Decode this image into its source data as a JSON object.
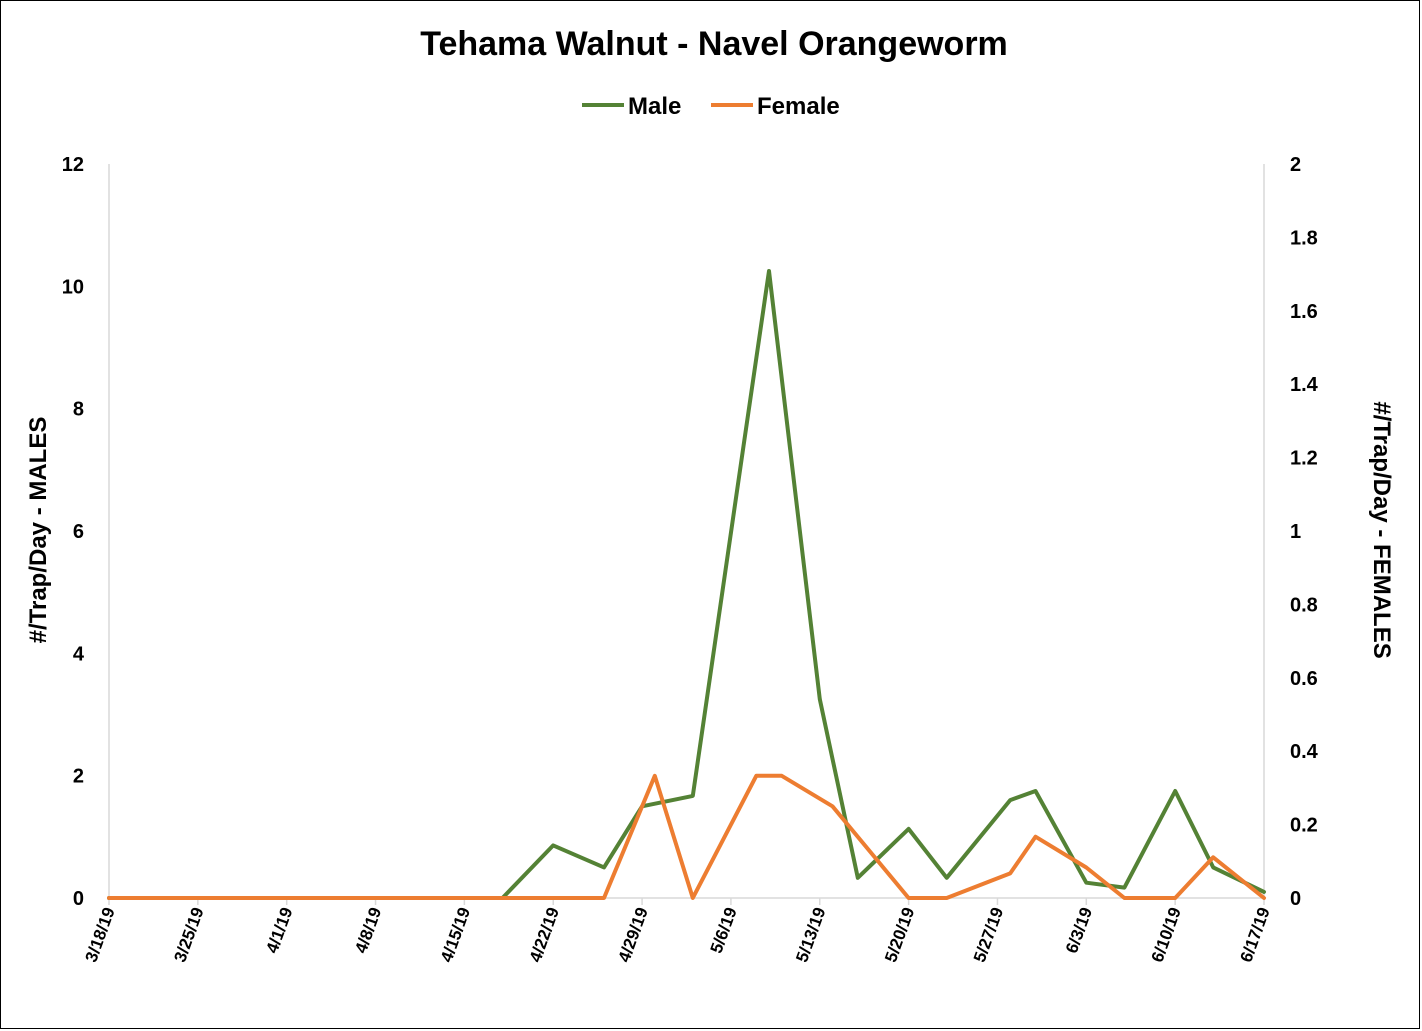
{
  "chart_data": {
    "type": "line",
    "title": "Tehama Walnut - Navel Orangeworm",
    "x": [
      "3/18/19",
      "3/25/19",
      "4/1/19",
      "4/8/19",
      "4/15/19",
      "4/22/19",
      "4/29/19",
      "5/6/19",
      "5/13/19",
      "5/20/19",
      "5/27/19",
      "6/3/19",
      "6/10/19",
      "6/17/19"
    ],
    "x_dates": [
      "2019-03-18",
      "2019-03-25",
      "2019-04-01",
      "2019-04-08",
      "2019-04-15",
      "2019-04-22",
      "2019-04-29",
      "2019-05-06",
      "2019-05-13",
      "2019-05-20",
      "2019-05-27",
      "2019-06-03",
      "2019-06-10",
      "2019-06-17"
    ],
    "ylabel_left": "#/Trap/Day  - MALES",
    "ylabel_right": "#/Trap/Day - FEMALES",
    "ylim_left": [
      0,
      12
    ],
    "ylim_right": [
      0,
      2
    ],
    "yticks_left": [
      "0",
      "2",
      "4",
      "6",
      "8",
      "10",
      "12"
    ],
    "yticks_right": [
      "0",
      "0.2",
      "0.4",
      "0.6",
      "0.8",
      "1",
      "1.2",
      "1.4",
      "1.6",
      "1.8",
      "2"
    ],
    "legend": {
      "placement": "top-center",
      "entries": [
        "Male",
        "Female"
      ]
    },
    "grid": false,
    "series": [
      {
        "name": "Male",
        "axis": "left",
        "color": "#548235",
        "points": [
          [
            "2019-03-18",
            0
          ],
          [
            "2019-04-15",
            0
          ],
          [
            "2019-04-18",
            0
          ],
          [
            "2019-04-22",
            0.86
          ],
          [
            "2019-04-26",
            0.5
          ],
          [
            "2019-04-29",
            1.5
          ],
          [
            "2019-05-03",
            1.67
          ],
          [
            "2019-05-07",
            7.4
          ],
          [
            "2019-05-09",
            10.25
          ],
          [
            "2019-05-13",
            3.25
          ],
          [
            "2019-05-16",
            0.33
          ],
          [
            "2019-05-20",
            1.13
          ],
          [
            "2019-05-23",
            0.33
          ],
          [
            "2019-05-28",
            1.6
          ],
          [
            "2019-05-30",
            1.75
          ],
          [
            "2019-06-03",
            0.25
          ],
          [
            "2019-06-06",
            0.17
          ],
          [
            "2019-06-10",
            1.75
          ],
          [
            "2019-06-13",
            0.5
          ],
          [
            "2019-06-17",
            0.1
          ]
        ]
      },
      {
        "name": "Female",
        "axis": "right",
        "color": "#ED7D31",
        "points": [
          [
            "2019-03-18",
            0
          ],
          [
            "2019-04-26",
            0
          ],
          [
            "2019-04-30",
            0.333
          ],
          [
            "2019-05-03",
            0
          ],
          [
            "2019-05-08",
            0.333
          ],
          [
            "2019-05-10",
            0.333
          ],
          [
            "2019-05-14",
            0.25
          ],
          [
            "2019-05-17",
            0.125
          ],
          [
            "2019-05-20",
            0
          ],
          [
            "2019-05-23",
            0
          ],
          [
            "2019-05-28",
            0.067
          ],
          [
            "2019-05-30",
            0.167
          ],
          [
            "2019-06-03",
            0.083
          ],
          [
            "2019-06-06",
            0
          ],
          [
            "2019-06-10",
            0
          ],
          [
            "2019-06-13",
            0.111
          ],
          [
            "2019-06-17",
            0
          ]
        ]
      }
    ]
  }
}
